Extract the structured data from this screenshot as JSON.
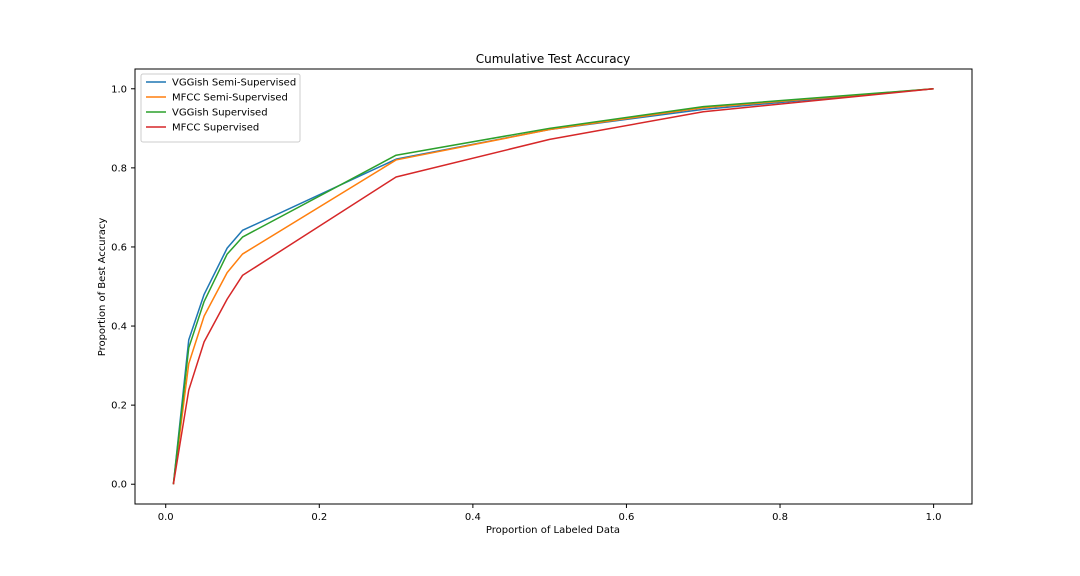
{
  "chart_data": {
    "type": "line",
    "title": "Cumulative Test Accuracy",
    "xlabel": "Proportion of Labeled Data",
    "ylabel": "Proportion of Best Accuracy",
    "xlim": [
      -0.04,
      1.05
    ],
    "ylim": [
      -0.05,
      1.05
    ],
    "xticks": [
      "0.0",
      "0.2",
      "0.4",
      "0.6",
      "0.8",
      "1.0"
    ],
    "yticks": [
      "0.0",
      "0.2",
      "0.4",
      "0.6",
      "0.8",
      "1.0"
    ],
    "grid": false,
    "legend_position": "top-left",
    "x": [
      0.01,
      0.03,
      0.05,
      0.08,
      0.1,
      0.3,
      0.5,
      0.7,
      1.0
    ],
    "series": [
      {
        "name": "VGGish Semi-Supervised",
        "color": "#1f77b4",
        "values": [
          0.0,
          0.365,
          0.48,
          0.597,
          0.642,
          0.822,
          0.897,
          0.948,
          1.0
        ]
      },
      {
        "name": "MFCC Semi-Supervised",
        "color": "#ff7f0e",
        "values": [
          0.0,
          0.305,
          0.425,
          0.535,
          0.582,
          0.82,
          0.897,
          0.952,
          1.0
        ]
      },
      {
        "name": "VGGish Supervised",
        "color": "#2ca02c",
        "values": [
          0.0,
          0.345,
          0.462,
          0.582,
          0.625,
          0.832,
          0.9,
          0.955,
          1.0
        ]
      },
      {
        "name": "MFCC Supervised",
        "color": "#d62728",
        "values": [
          0.0,
          0.238,
          0.36,
          0.468,
          0.528,
          0.777,
          0.872,
          0.942,
          1.0
        ]
      }
    ]
  }
}
